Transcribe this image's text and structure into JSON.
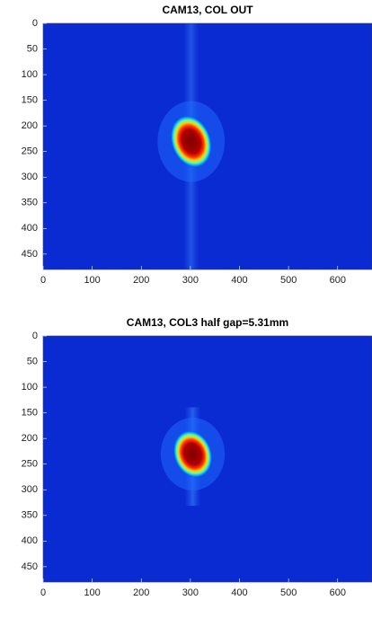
{
  "chart_data": [
    {
      "type": "heatmap",
      "title": "CAM13, COL OUT",
      "xlim": [
        0,
        670
      ],
      "ylim": [
        0,
        480
      ],
      "y_reversed": true,
      "xticks": [
        0,
        100,
        200,
        300,
        400,
        500,
        600
      ],
      "yticks": [
        0,
        50,
        100,
        150,
        200,
        250,
        300,
        350,
        400,
        450
      ]
    },
    {
      "type": "heatmap",
      "title": "CAM13, COL3 half gap=5.31mm",
      "xlim": [
        0,
        670
      ],
      "ylim": [
        0,
        480
      ],
      "y_reversed": true,
      "xticks": [
        0,
        100,
        200,
        300,
        400,
        500,
        600
      ],
      "yticks": [
        0,
        50,
        100,
        150,
        200,
        250,
        300,
        350,
        400,
        450
      ]
    }
  ]
}
